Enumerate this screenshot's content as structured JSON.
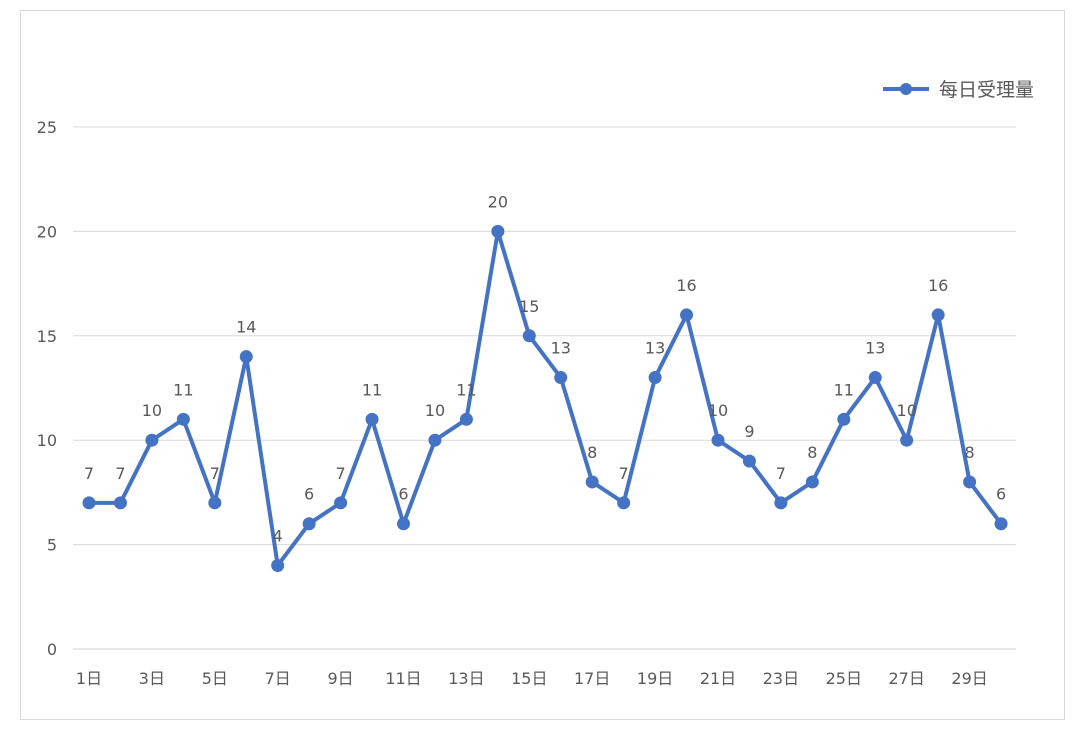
{
  "chart_data": {
    "type": "line",
    "title": "",
    "xlabel": "",
    "ylabel": "",
    "ylim": [
      0,
      25
    ],
    "yticks": [
      0,
      5,
      10,
      15,
      20,
      25
    ],
    "grid": true,
    "legend_position": "top-right",
    "categories": [
      "1日",
      "2日",
      "3日",
      "4日",
      "5日",
      "6日",
      "7日",
      "8日",
      "9日",
      "10日",
      "11日",
      "12日",
      "13日",
      "14日",
      "15日",
      "16日",
      "17日",
      "18日",
      "19日",
      "20日",
      "21日",
      "22日",
      "23日",
      "24日",
      "25日",
      "26日",
      "27日",
      "28日",
      "29日",
      "30日"
    ],
    "xtick_labels": [
      "1日",
      "3日",
      "5日",
      "7日",
      "9日",
      "11日",
      "13日",
      "15日",
      "17日",
      "19日",
      "21日",
      "23日",
      "25日",
      "27日",
      "29日"
    ],
    "series": [
      {
        "name": "每日受理量",
        "color": "#4472c4",
        "values": [
          7,
          7,
          10,
          11,
          7,
          14,
          4,
          6,
          7,
          11,
          6,
          10,
          11,
          20,
          15,
          13,
          8,
          7,
          13,
          16,
          10,
          9,
          7,
          8,
          11,
          13,
          10,
          16,
          8,
          6
        ]
      }
    ]
  }
}
